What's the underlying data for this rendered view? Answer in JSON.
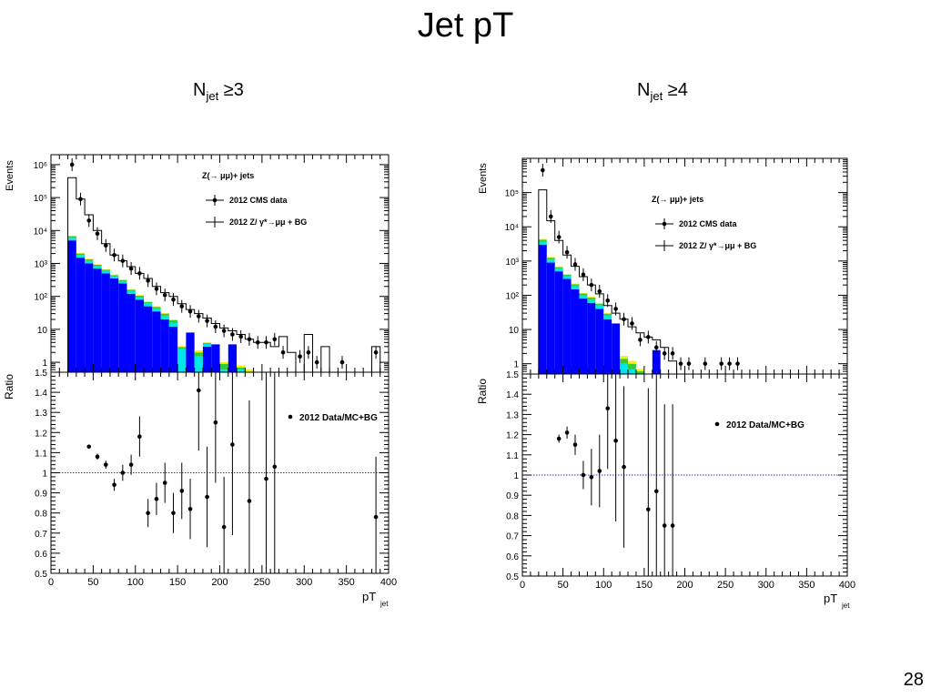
{
  "slide": {
    "title": "Jet pT",
    "number": "28"
  },
  "panels": [
    {
      "heading_main": "N",
      "heading_sub": "jet",
      "heading_rest": " ≥3"
    },
    {
      "heading_main": "N",
      "heading_sub": "jet",
      "heading_rest": " ≥4"
    }
  ],
  "legend": {
    "process": "Z(→ μμ)+ jets",
    "data": "2012 CMS data",
    "mc": "2012 Z/ γ*→μμ + BG",
    "ratio": "2012 Data/MC+BG"
  },
  "colors": {
    "main": "#0000ff",
    "cyan": "#00e5e5",
    "green": "#33cc33",
    "yellow": "#ffee00",
    "ref_line": "#3333cc"
  },
  "chart_data": [
    {
      "type": "bar",
      "xlabel_main": "pT",
      "xlabel_sub": "jet",
      "ylabel_top": "Events",
      "ylabel_bottom": "Ratio",
      "xlim": [
        0,
        400
      ],
      "xticks": [
        "0",
        "50",
        "100",
        "150",
        "200",
        "250",
        "300",
        "350",
        "400"
      ],
      "top_ylim": [
        0.5,
        2000000
      ],
      "top_log": true,
      "top_yticks": [
        {
          "v": 1,
          "label": "1"
        },
        {
          "v": 10,
          "label": "10"
        },
        {
          "v": 100,
          "label": "10²"
        },
        {
          "v": 1000,
          "label": "10³"
        },
        {
          "v": 10000,
          "label": "10⁴"
        },
        {
          "v": 100000,
          "label": "10⁵"
        },
        {
          "v": 1000000,
          "label": "10⁶"
        }
      ],
      "top_corner_label": "1.5",
      "bottom_ylim": [
        0.5,
        1.5
      ],
      "bottom_yticks": [
        "0.5",
        "0.6",
        "0.7",
        "0.8",
        "0.9",
        "1",
        "1.1",
        "1.2",
        "1.3",
        "1.4"
      ],
      "bin_width": 10,
      "mc_bins": [
        {
          "x0": 20,
          "stack": [
            5000,
            1000,
            700,
            300
          ],
          "total": 400000
        },
        {
          "x0": 30,
          "stack": [
            1500,
            300,
            200,
            80
          ],
          "total": 90000
        },
        {
          "x0": 40,
          "stack": [
            1000,
            200,
            130,
            50
          ],
          "total": 30000
        },
        {
          "x0": 50,
          "stack": [
            700,
            130,
            80,
            30
          ],
          "total": 10000
        },
        {
          "x0": 60,
          "stack": [
            500,
            90,
            50,
            20
          ],
          "total": 4000
        },
        {
          "x0": 70,
          "stack": [
            350,
            60,
            35,
            15
          ],
          "total": 1800
        },
        {
          "x0": 80,
          "stack": [
            250,
            40,
            25,
            10
          ],
          "total": 1200
        },
        {
          "x0": 90,
          "stack": [
            120,
            25,
            15,
            5
          ],
          "total": 800
        },
        {
          "x0": 100,
          "stack": [
            80,
            15,
            10,
            5
          ],
          "total": 500
        },
        {
          "x0": 110,
          "stack": [
            50,
            12,
            6,
            2
          ],
          "total": 350
        },
        {
          "x0": 120,
          "stack": [
            35,
            8,
            5,
            2
          ],
          "total": 200
        },
        {
          "x0": 130,
          "stack": [
            20,
            6,
            4,
            1
          ],
          "total": 130
        },
        {
          "x0": 140,
          "stack": [
            12,
            4,
            3,
            1
          ],
          "total": 100
        },
        {
          "x0": 150,
          "stack": [
            0,
            2.5,
            0.4,
            0.2
          ],
          "total": 60
        },
        {
          "x0": 160,
          "stack": [
            8,
            0,
            0,
            0
          ],
          "total": 40
        },
        {
          "x0": 170,
          "stack": [
            0,
            1.5,
            0.5,
            0.3
          ],
          "total": 30
        },
        {
          "x0": 180,
          "stack": [
            3,
            0.6,
            0.3,
            0.1
          ],
          "total": 22
        },
        {
          "x0": 190,
          "stack": [
            3.5,
            0,
            0,
            0
          ],
          "total": 15
        },
        {
          "x0": 200,
          "stack": [
            0,
            0.6,
            0.3,
            0.1
          ],
          "total": 11
        },
        {
          "x0": 210,
          "stack": [
            3.5,
            0,
            0,
            0
          ],
          "total": 9
        },
        {
          "x0": 220,
          "stack": [
            0,
            0.6,
            0.1,
            0.1
          ],
          "total": 7
        },
        {
          "x0": 230,
          "stack": [
            0,
            0.4,
            0.1,
            0.1
          ],
          "total": 5
        },
        {
          "x0": 240,
          "stack": [
            0,
            0,
            0,
            0
          ],
          "total": 4
        },
        {
          "x0": 250,
          "stack": [
            0,
            0,
            0,
            0
          ],
          "total": 4
        },
        {
          "x0": 260,
          "stack": [
            0,
            0,
            0,
            0
          ],
          "total": 3
        },
        {
          "x0": 270,
          "stack": [
            0,
            0,
            0,
            0
          ],
          "total": 6
        },
        {
          "x0": 280,
          "stack": [
            0,
            0,
            0,
            0
          ],
          "total": 2
        },
        {
          "x0": 290,
          "stack": [
            0,
            0,
            0,
            0
          ],
          "total": 0.5
        },
        {
          "x0": 300,
          "stack": [
            0,
            0,
            0,
            0
          ],
          "total": 7
        },
        {
          "x0": 310,
          "stack": [
            0,
            0,
            0,
            0
          ],
          "total": 0.5
        },
        {
          "x0": 320,
          "stack": [
            0,
            0,
            0,
            0
          ],
          "total": 3
        },
        {
          "x0": 330,
          "stack": [
            0,
            0,
            0,
            0
          ],
          "total": 0.5
        },
        {
          "x0": 340,
          "stack": [
            0,
            0,
            0,
            0
          ],
          "total": 0.5
        },
        {
          "x0": 350,
          "stack": [
            0,
            0,
            0,
            0
          ],
          "total": 0.5
        },
        {
          "x0": 360,
          "stack": [
            0,
            0,
            0,
            0
          ],
          "total": 0.5
        },
        {
          "x0": 370,
          "stack": [
            0,
            0,
            0,
            0
          ],
          "total": 0.5
        },
        {
          "x0": 380,
          "stack": [
            0,
            0,
            0,
            0
          ],
          "total": 3
        }
      ],
      "data_points": [
        {
          "x": 25,
          "y": 1000000
        },
        {
          "x": 35,
          "y": 90000
        },
        {
          "x": 45,
          "y": 20000
        },
        {
          "x": 55,
          "y": 8000
        },
        {
          "x": 65,
          "y": 3500
        },
        {
          "x": 75,
          "y": 1800
        },
        {
          "x": 85,
          "y": 1200
        },
        {
          "x": 95,
          "y": 700
        },
        {
          "x": 105,
          "y": 500
        },
        {
          "x": 115,
          "y": 300
        },
        {
          "x": 125,
          "y": 170
        },
        {
          "x": 135,
          "y": 110
        },
        {
          "x": 145,
          "y": 80
        },
        {
          "x": 155,
          "y": 50
        },
        {
          "x": 165,
          "y": 35
        },
        {
          "x": 175,
          "y": 25
        },
        {
          "x": 185,
          "y": 18
        },
        {
          "x": 195,
          "y": 12
        },
        {
          "x": 205,
          "y": 9
        },
        {
          "x": 215,
          "y": 7
        },
        {
          "x": 225,
          "y": 6
        },
        {
          "x": 235,
          "y": 5
        },
        {
          "x": 245,
          "y": 4
        },
        {
          "x": 255,
          "y": 4
        },
        {
          "x": 265,
          "y": 5
        },
        {
          "x": 275,
          "y": 2
        },
        {
          "x": 295,
          "y": 1.5
        },
        {
          "x": 305,
          "y": 2
        },
        {
          "x": 315,
          "y": 1
        },
        {
          "x": 345,
          "y": 1
        },
        {
          "x": 385,
          "y": 2
        }
      ],
      "ratio_points": [
        {
          "x": 45,
          "y": 1.13,
          "err": 0.01
        },
        {
          "x": 55,
          "y": 1.08,
          "err": 0.015
        },
        {
          "x": 65,
          "y": 1.04,
          "err": 0.02
        },
        {
          "x": 75,
          "y": 0.94,
          "err": 0.03
        },
        {
          "x": 85,
          "y": 1.0,
          "err": 0.04
        },
        {
          "x": 95,
          "y": 1.04,
          "err": 0.05
        },
        {
          "x": 105,
          "y": 1.18,
          "err": 0.1
        },
        {
          "x": 115,
          "y": 0.8,
          "err": 0.07
        },
        {
          "x": 125,
          "y": 0.87,
          "err": 0.08
        },
        {
          "x": 135,
          "y": 0.95,
          "err": 0.1
        },
        {
          "x": 145,
          "y": 0.8,
          "err": 0.1
        },
        {
          "x": 155,
          "y": 0.91,
          "err": 0.14
        },
        {
          "x": 165,
          "y": 0.82,
          "err": 0.15
        },
        {
          "x": 175,
          "y": 1.41,
          "err": 0.3
        },
        {
          "x": 185,
          "y": 0.88,
          "err": 0.25
        },
        {
          "x": 195,
          "y": 1.25,
          "err": 0.3
        },
        {
          "x": 205,
          "y": 0.73,
          "err": 0.25
        },
        {
          "x": 215,
          "y": 1.14,
          "err": 0.45
        },
        {
          "x": 235,
          "y": 0.86,
          "err": 0.5
        },
        {
          "x": 255,
          "y": 0.97,
          "err": 0.6
        },
        {
          "x": 265,
          "y": 1.03,
          "err": 0.6
        },
        {
          "x": 385,
          "y": 0.78,
          "err": 0.3
        }
      ],
      "ratio_reference": 1
    },
    {
      "type": "bar",
      "xlabel_main": "pT",
      "xlabel_sub": "jet",
      "ylabel_top": "Events",
      "ylabel_bottom": "Ratio",
      "xlim": [
        0,
        400
      ],
      "xticks": [
        "0",
        "50",
        "100",
        "150",
        "200",
        "250",
        "300",
        "350",
        "400"
      ],
      "top_ylim": [
        0.5,
        1000000
      ],
      "top_log": true,
      "top_yticks": [
        {
          "v": 1,
          "label": "1"
        },
        {
          "v": 10,
          "label": "10"
        },
        {
          "v": 100,
          "label": "10²"
        },
        {
          "v": 1000,
          "label": "10³"
        },
        {
          "v": 10000,
          "label": "10⁴"
        },
        {
          "v": 100000,
          "label": "10⁵"
        }
      ],
      "top_corner_label": "1.5",
      "bottom_ylim": [
        0.5,
        1.5
      ],
      "bottom_yticks": [
        "0.5",
        "0.6",
        "0.7",
        "0.8",
        "0.9",
        "1",
        "1.1",
        "1.2",
        "1.3",
        "1.4"
      ],
      "bin_width": 10,
      "mc_bins": [
        {
          "x0": 20,
          "stack": [
            3000,
            700,
            500,
            200
          ],
          "total": 120000
        },
        {
          "x0": 30,
          "stack": [
            900,
            200,
            150,
            60
          ],
          "total": 15000
        },
        {
          "x0": 40,
          "stack": [
            500,
            100,
            60,
            30
          ],
          "total": 4000
        },
        {
          "x0": 50,
          "stack": [
            300,
            60,
            40,
            15
          ],
          "total": 1500
        },
        {
          "x0": 60,
          "stack": [
            150,
            35,
            25,
            10
          ],
          "total": 700
        },
        {
          "x0": 70,
          "stack": [
            80,
            20,
            12,
            5
          ],
          "total": 350
        },
        {
          "x0": 80,
          "stack": [
            60,
            15,
            10,
            5
          ],
          "total": 200
        },
        {
          "x0": 90,
          "stack": [
            40,
            10,
            6,
            3
          ],
          "total": 110
        },
        {
          "x0": 100,
          "stack": [
            20,
            6,
            3,
            1
          ],
          "total": 50
        },
        {
          "x0": 110,
          "stack": [
            15,
            0,
            0,
            0
          ],
          "total": 30
        },
        {
          "x0": 120,
          "stack": [
            0,
            1,
            0.4,
            0.3
          ],
          "total": 20
        },
        {
          "x0": 130,
          "stack": [
            0,
            0.7,
            0.3,
            0.2
          ],
          "total": 12
        },
        {
          "x0": 140,
          "stack": [
            0,
            0.4,
            0.2,
            0.1
          ],
          "total": 8
        },
        {
          "x0": 150,
          "stack": [
            0,
            0,
            0,
            0
          ],
          "total": 6
        },
        {
          "x0": 160,
          "stack": [
            2.5,
            0,
            0,
            0
          ],
          "total": 5
        },
        {
          "x0": 170,
          "stack": [
            0,
            0,
            0,
            0
          ],
          "total": 3
        },
        {
          "x0": 180,
          "stack": [
            0,
            0,
            0,
            0
          ],
          "total": 1.2
        },
        {
          "x0": 190,
          "stack": [
            0,
            0,
            0,
            0
          ],
          "total": 0.5
        }
      ],
      "data_points": [
        {
          "x": 25,
          "y": 450000
        },
        {
          "x": 35,
          "y": 20000
        },
        {
          "x": 45,
          "y": 5000
        },
        {
          "x": 55,
          "y": 1800
        },
        {
          "x": 65,
          "y": 800
        },
        {
          "x": 75,
          "y": 400
        },
        {
          "x": 85,
          "y": 200
        },
        {
          "x": 95,
          "y": 130
        },
        {
          "x": 105,
          "y": 70
        },
        {
          "x": 115,
          "y": 40
        },
        {
          "x": 125,
          "y": 20
        },
        {
          "x": 135,
          "y": 15
        },
        {
          "x": 145,
          "y": 5
        },
        {
          "x": 155,
          "y": 6
        },
        {
          "x": 165,
          "y": 3
        },
        {
          "x": 175,
          "y": 2
        },
        {
          "x": 185,
          "y": 2
        },
        {
          "x": 195,
          "y": 1
        },
        {
          "x": 205,
          "y": 1
        },
        {
          "x": 225,
          "y": 1
        },
        {
          "x": 245,
          "y": 1
        },
        {
          "x": 255,
          "y": 1
        },
        {
          "x": 265,
          "y": 1
        }
      ],
      "ratio_points": [
        {
          "x": 45,
          "y": 1.18,
          "err": 0.02
        },
        {
          "x": 55,
          "y": 1.21,
          "err": 0.03
        },
        {
          "x": 65,
          "y": 1.15,
          "err": 0.05
        },
        {
          "x": 75,
          "y": 1.0,
          "err": 0.07
        },
        {
          "x": 85,
          "y": 0.99,
          "err": 0.14
        },
        {
          "x": 95,
          "y": 1.02,
          "err": 0.18
        },
        {
          "x": 105,
          "y": 1.33,
          "err": 0.3
        },
        {
          "x": 115,
          "y": 1.17,
          "err": 0.4
        },
        {
          "x": 125,
          "y": 1.04,
          "err": 0.4
        },
        {
          "x": 155,
          "y": 0.83,
          "err": 0.6
        },
        {
          "x": 165,
          "y": 0.92,
          "err": 0.6
        },
        {
          "x": 175,
          "y": 0.75,
          "err": 0.6
        },
        {
          "x": 185,
          "y": 0.75,
          "err": 0.6
        }
      ],
      "ratio_reference": 1
    }
  ]
}
